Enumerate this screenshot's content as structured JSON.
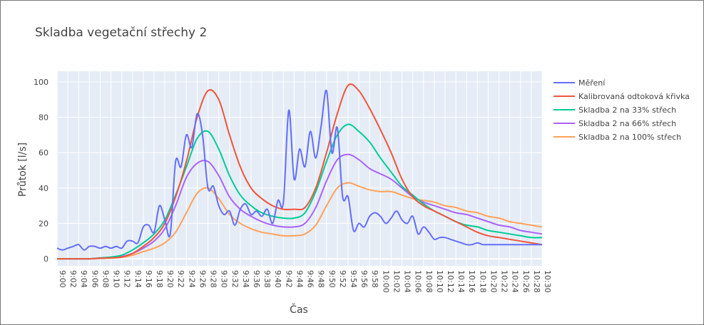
{
  "chart_data": {
    "type": "line",
    "title": "Skladba vegetační střechy 2",
    "xlabel": "Čas",
    "ylabel": "Průtok [l/s]",
    "x_ticks": [
      "9:00",
      "9:02",
      "9:04",
      "9:06",
      "9:08",
      "9:10",
      "9:12",
      "9:14",
      "9:16",
      "9:18",
      "9:20",
      "9:22",
      "9:24",
      "9:26",
      "9:28",
      "9:30",
      "9:32",
      "9:34",
      "9:36",
      "9:38",
      "9:40",
      "9:42",
      "9:44",
      "9:46",
      "9:48",
      "9:50",
      "9:52",
      "9:54",
      "9:56",
      "9:58",
      "10:00",
      "10:02",
      "10:04",
      "10:06",
      "10:08",
      "10:10",
      "10:12",
      "10:14",
      "10:16",
      "10:18",
      "10:20",
      "10:22",
      "10:24",
      "10:26",
      "10:28",
      "10:30"
    ],
    "y_ticks": [
      0,
      20,
      40,
      60,
      80,
      100
    ],
    "ylim": [
      -4,
      106
    ],
    "xlim": [
      0,
      90
    ],
    "x_unit_note": "",
    "grid": true,
    "legend_position": "right",
    "series": [
      {
        "name": "Měření",
        "color": "#636efa",
        "x": [
          0,
          1,
          2,
          3,
          4,
          5,
          6,
          7,
          8,
          9,
          10,
          11,
          12,
          13,
          14,
          15,
          16,
          17,
          18,
          19,
          20,
          21,
          22,
          23,
          24,
          25,
          26,
          27,
          28,
          29,
          30,
          31,
          32,
          33,
          34,
          35,
          36,
          37,
          38,
          39,
          40,
          41,
          42,
          43,
          44,
          45,
          46,
          47,
          48,
          49,
          50,
          51,
          52,
          53,
          54,
          55,
          56,
          57,
          58,
          59,
          60,
          61,
          62,
          63,
          64,
          65,
          66,
          67,
          68,
          69,
          70,
          71,
          72,
          73,
          74,
          75,
          76,
          77,
          78,
          79,
          80,
          81,
          82,
          83,
          84,
          85,
          86,
          87,
          88,
          89,
          90
        ],
        "y": [
          6,
          5,
          6,
          7,
          8,
          5,
          7,
          7,
          6,
          7,
          6,
          7,
          6,
          10,
          10,
          9,
          18,
          19,
          15,
          30,
          22,
          14,
          55,
          52,
          70,
          63,
          82,
          70,
          40,
          41,
          30,
          25,
          27,
          19,
          28,
          31,
          25,
          27,
          24,
          28,
          20,
          33,
          32,
          84,
          45,
          62,
          52,
          72,
          57,
          75,
          95,
          60,
          74,
          35,
          35,
          16,
          20,
          18,
          24,
          26,
          24,
          20,
          23,
          27,
          22,
          20,
          24,
          14,
          18,
          15,
          11,
          12,
          12,
          11,
          10,
          9,
          8,
          8,
          9,
          8,
          8,
          8,
          8,
          8,
          8,
          8,
          8,
          8,
          8,
          8,
          8
        ]
      },
      {
        "name": "Kalibrovaná odtoková křivka",
        "color": "#ef553b",
        "x": [
          0,
          2,
          4,
          6,
          8,
          10,
          12,
          14,
          16,
          18,
          20,
          22,
          24,
          26,
          28,
          30,
          32,
          34,
          36,
          38,
          40,
          42,
          44,
          46,
          48,
          50,
          52,
          54,
          56,
          58,
          60,
          62,
          64,
          66,
          68,
          70,
          72,
          74,
          76,
          78,
          80,
          82,
          84,
          86,
          88,
          90
        ],
        "y": [
          0,
          0,
          0,
          0,
          0.3,
          0.5,
          1,
          3,
          7,
          12,
          20,
          35,
          55,
          80,
          95,
          90,
          70,
          52,
          40,
          34,
          30,
          28,
          28,
          29,
          40,
          60,
          82,
          98,
          95,
          85,
          73,
          60,
          45,
          35,
          30,
          27,
          24,
          21,
          18,
          15,
          13,
          12,
          11,
          10,
          9,
          8
        ]
      },
      {
        "name": "Skladba 2 na 33% střech",
        "color": "#00cc96",
        "x": [
          0,
          2,
          4,
          6,
          8,
          10,
          12,
          14,
          16,
          18,
          20,
          22,
          24,
          26,
          28,
          30,
          32,
          34,
          36,
          38,
          40,
          42,
          44,
          46,
          48,
          50,
          52,
          54,
          56,
          58,
          60,
          62,
          64,
          66,
          68,
          70,
          72,
          74,
          76,
          78,
          80,
          82,
          84,
          86,
          88,
          90
        ],
        "y": [
          0,
          0,
          0,
          0,
          0.5,
          1,
          2,
          5,
          9,
          14,
          22,
          36,
          52,
          68,
          72,
          62,
          47,
          36,
          30,
          26,
          24,
          23,
          23,
          26,
          38,
          55,
          70,
          76,
          72,
          66,
          57,
          49,
          41,
          36,
          31,
          27,
          24,
          21,
          19,
          18,
          16,
          15,
          14,
          13,
          12,
          12
        ]
      },
      {
        "name": "Skladba 2 na 66% střech",
        "color": "#ab63fa",
        "x": [
          0,
          2,
          4,
          6,
          8,
          10,
          12,
          14,
          16,
          18,
          20,
          22,
          24,
          26,
          28,
          30,
          32,
          34,
          36,
          38,
          40,
          42,
          44,
          46,
          48,
          50,
          52,
          54,
          56,
          58,
          60,
          62,
          64,
          66,
          68,
          70,
          72,
          74,
          76,
          78,
          80,
          82,
          84,
          86,
          88,
          90
        ],
        "y": [
          0,
          0,
          0,
          0,
          0.3,
          0.6,
          1.2,
          3,
          6,
          10,
          17,
          30,
          46,
          54,
          55,
          47,
          35,
          28,
          24,
          21,
          19,
          18,
          18,
          20,
          29,
          44,
          56,
          59,
          56,
          51,
          48,
          45,
          40,
          35,
          32,
          30,
          28,
          26,
          25,
          23,
          21,
          19,
          18,
          16,
          15,
          14
        ]
      },
      {
        "name": "Skladba 2 na 100% střech",
        "color": "#ffa15a",
        "x": [
          0,
          2,
          4,
          6,
          8,
          10,
          12,
          14,
          16,
          18,
          20,
          22,
          24,
          26,
          28,
          30,
          32,
          34,
          36,
          38,
          40,
          42,
          44,
          46,
          48,
          50,
          52,
          54,
          56,
          58,
          60,
          62,
          64,
          66,
          68,
          70,
          72,
          74,
          76,
          78,
          80,
          82,
          84,
          86,
          88,
          90
        ],
        "y": [
          0,
          0,
          0,
          0,
          0.2,
          0.4,
          0.8,
          2,
          4,
          6,
          9,
          15,
          26,
          37,
          40,
          34,
          25,
          20,
          17,
          15,
          14,
          13,
          13,
          14,
          19,
          30,
          40,
          43,
          41,
          39,
          38,
          38,
          36,
          34,
          33,
          32,
          30,
          29,
          27,
          26,
          24,
          23,
          21,
          20,
          19,
          18
        ]
      }
    ]
  }
}
